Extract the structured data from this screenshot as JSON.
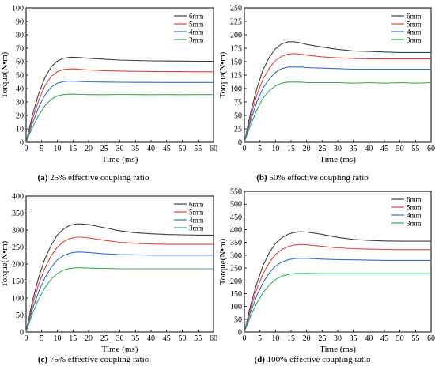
{
  "figure": {
    "panels": [
      {
        "caption_letter": "(a)",
        "caption_text": " 25% effective coupling ratio"
      },
      {
        "caption_letter": "(b)",
        "caption_text": " 50% effective coupling ratio"
      },
      {
        "caption_letter": "(c)",
        "caption_text": " 75% effective coupling ratio"
      },
      {
        "caption_letter": "(d)",
        "caption_text": " 100% effective coupling ratio"
      }
    ]
  },
  "chart_data": [
    {
      "type": "line",
      "xlabel": "Time (ms)",
      "ylabel": "Torque(N•m)",
      "xlim": [
        0,
        60
      ],
      "ylim": [
        0,
        100
      ],
      "xticks": [
        0,
        5,
        10,
        15,
        20,
        25,
        30,
        35,
        40,
        45,
        50,
        55,
        60
      ],
      "yticks": [
        0,
        10,
        20,
        30,
        40,
        50,
        60,
        70,
        80,
        90,
        100
      ],
      "legend": "top-right",
      "grid": false,
      "series": [
        {
          "name": "6mm",
          "color": "#404040",
          "x": [
            0,
            2,
            4,
            6,
            8,
            10,
            12,
            14,
            16,
            18,
            20,
            25,
            30,
            35,
            40,
            45,
            50,
            55,
            60
          ],
          "values": [
            0,
            20,
            36,
            48,
            56,
            60.5,
            62.5,
            63.3,
            63.2,
            62.9,
            62.5,
            61.8,
            61.2,
            60.9,
            60.6,
            60.5,
            60.4,
            60.3,
            60.3
          ]
        },
        {
          "name": "5mm",
          "color": "#e8403a",
          "x": [
            0,
            2,
            4,
            6,
            8,
            10,
            12,
            14,
            16,
            18,
            20,
            25,
            30,
            35,
            40,
            45,
            50,
            55,
            60
          ],
          "values": [
            0,
            17,
            31,
            42,
            49,
            52.5,
            54.2,
            54.6,
            54.5,
            54.2,
            53.8,
            53.3,
            53,
            52.8,
            52.7,
            52.6,
            52.6,
            52.5,
            52.5
          ]
        },
        {
          "name": "4mm",
          "color": "#2f6fd6",
          "x": [
            0,
            2,
            4,
            6,
            8,
            10,
            12,
            14,
            16,
            18,
            20,
            25,
            30,
            35,
            40,
            45,
            50,
            55,
            60
          ],
          "values": [
            0,
            14,
            26,
            35,
            41,
            44,
            45.2,
            45.5,
            45.4,
            45.2,
            45,
            44.8,
            44.7,
            44.6,
            44.6,
            44.5,
            44.5,
            44.5,
            44.5
          ]
        },
        {
          "name": "3mm",
          "color": "#2fb15a",
          "x": [
            0,
            2,
            4,
            6,
            8,
            10,
            12,
            14,
            16,
            18,
            20,
            25,
            30,
            35,
            40,
            45,
            50,
            55,
            60
          ],
          "values": [
            0,
            11,
            20,
            27,
            32,
            34.5,
            35.5,
            35.8,
            35.7,
            35.6,
            35.5,
            35.4,
            35.6,
            35.5,
            35.4,
            35.5,
            35.4,
            35.5,
            35.5
          ]
        }
      ]
    },
    {
      "type": "line",
      "xlabel": "Time (ms)",
      "ylabel": "Torque(N•m)",
      "xlim": [
        0,
        60
      ],
      "ylim": [
        0,
        250
      ],
      "xticks": [
        0,
        5,
        10,
        15,
        20,
        25,
        30,
        35,
        40,
        45,
        50,
        55,
        60
      ],
      "yticks": [
        0,
        25,
        50,
        75,
        100,
        125,
        150,
        175,
        200,
        225,
        250
      ],
      "legend": "top-right",
      "grid": false,
      "series": [
        {
          "name": "6mm",
          "color": "#404040",
          "x": [
            0,
            2,
            4,
            6,
            8,
            10,
            12,
            14,
            16,
            18,
            20,
            25,
            30,
            35,
            40,
            45,
            50,
            55,
            60
          ],
          "values": [
            0,
            55,
            100,
            135,
            158,
            174,
            183,
            187,
            187,
            185,
            182,
            177,
            173,
            170,
            169,
            168,
            167,
            167,
            167
          ]
        },
        {
          "name": "5mm",
          "color": "#e8403a",
          "x": [
            0,
            2,
            4,
            6,
            8,
            10,
            12,
            14,
            16,
            18,
            20,
            25,
            30,
            35,
            40,
            45,
            50,
            55,
            60
          ],
          "values": [
            0,
            47,
            88,
            118,
            138,
            152,
            160,
            164,
            165,
            164,
            162,
            159,
            157,
            156,
            155,
            155,
            155,
            155,
            155
          ]
        },
        {
          "name": "4mm",
          "color": "#2f6fd6",
          "x": [
            0,
            2,
            4,
            6,
            8,
            10,
            12,
            14,
            16,
            18,
            20,
            25,
            30,
            35,
            40,
            45,
            50,
            55,
            60
          ],
          "values": [
            0,
            40,
            75,
            101,
            118,
            130,
            137,
            140,
            140,
            140,
            139,
            138,
            137,
            136,
            136,
            136,
            136,
            136,
            136
          ]
        },
        {
          "name": "3mm",
          "color": "#2fb15a",
          "x": [
            0,
            2,
            4,
            6,
            8,
            10,
            12,
            14,
            16,
            18,
            20,
            25,
            30,
            35,
            40,
            45,
            50,
            55,
            60
          ],
          "values": [
            0,
            32,
            60,
            82,
            96,
            105,
            110,
            112,
            112,
            112,
            111,
            111,
            111,
            110,
            111,
            110,
            111,
            110,
            111
          ]
        }
      ]
    },
    {
      "type": "line",
      "xlabel": "Time (ms)",
      "ylabel": "Torque(N•m)",
      "xlim": [
        0,
        60
      ],
      "ylim": [
        0,
        400
      ],
      "xticks": [
        0,
        5,
        10,
        15,
        20,
        25,
        30,
        35,
        40,
        45,
        50,
        55,
        60
      ],
      "yticks": [
        0,
        50,
        100,
        150,
        200,
        250,
        300,
        350,
        400
      ],
      "legend": "top-right",
      "grid": false,
      "series": [
        {
          "name": "6mm",
          "color": "#404040",
          "x": [
            0,
            2,
            4,
            6,
            8,
            10,
            12,
            14,
            16,
            18,
            20,
            25,
            30,
            35,
            40,
            45,
            50,
            55,
            60
          ],
          "values": [
            0,
            90,
            160,
            215,
            255,
            285,
            303,
            314,
            318,
            318,
            316,
            307,
            298,
            292,
            289,
            287,
            286,
            285,
            285
          ]
        },
        {
          "name": "5mm",
          "color": "#e8403a",
          "x": [
            0,
            2,
            4,
            6,
            8,
            10,
            12,
            14,
            16,
            18,
            20,
            25,
            30,
            35,
            40,
            45,
            50,
            55,
            60
          ],
          "values": [
            0,
            78,
            140,
            188,
            224,
            250,
            266,
            275,
            279,
            279,
            277,
            270,
            264,
            261,
            259,
            258,
            258,
            258,
            258
          ]
        },
        {
          "name": "4mm",
          "color": "#2f6fd6",
          "x": [
            0,
            2,
            4,
            6,
            8,
            10,
            12,
            14,
            16,
            18,
            20,
            25,
            30,
            35,
            40,
            45,
            50,
            55,
            60
          ],
          "values": [
            0,
            66,
            118,
            159,
            190,
            212,
            225,
            232,
            235,
            235,
            234,
            230,
            228,
            227,
            226,
            226,
            226,
            226,
            226
          ]
        },
        {
          "name": "3mm",
          "color": "#2fb15a",
          "x": [
            0,
            2,
            4,
            6,
            8,
            10,
            12,
            14,
            16,
            18,
            20,
            25,
            30,
            35,
            40,
            45,
            50,
            55,
            60
          ],
          "values": [
            0,
            53,
            96,
            130,
            155,
            172,
            182,
            187,
            189,
            189,
            188,
            187,
            186,
            186,
            186,
            186,
            186,
            186,
            186
          ]
        }
      ]
    },
    {
      "type": "line",
      "xlabel": "Time (ms)",
      "ylabel": "Torque(N•m)",
      "xlim": [
        0,
        60
      ],
      "ylim": [
        0,
        550
      ],
      "xticks": [
        0,
        5,
        10,
        15,
        20,
        25,
        30,
        35,
        40,
        45,
        50,
        55,
        60
      ],
      "yticks": [
        0,
        50,
        100,
        150,
        200,
        250,
        300,
        350,
        400,
        450,
        500,
        550
      ],
      "legend": "top-right",
      "grid": false,
      "series": [
        {
          "name": "6mm",
          "color": "#404040",
          "x": [
            0,
            2,
            4,
            6,
            8,
            10,
            12,
            14,
            16,
            18,
            20,
            25,
            30,
            35,
            40,
            45,
            50,
            55,
            60
          ],
          "values": [
            0,
            105,
            190,
            260,
            310,
            346,
            368,
            382,
            389,
            392,
            391,
            382,
            370,
            362,
            358,
            356,
            355,
            355,
            355
          ]
        },
        {
          "name": "5mm",
          "color": "#e8403a",
          "x": [
            0,
            2,
            4,
            6,
            8,
            10,
            12,
            14,
            16,
            18,
            20,
            25,
            30,
            35,
            40,
            45,
            50,
            55,
            60
          ],
          "values": [
            0,
            92,
            168,
            228,
            272,
            303,
            322,
            334,
            340,
            342,
            341,
            335,
            329,
            326,
            324,
            323,
            322,
            322,
            322
          ]
        },
        {
          "name": "4mm",
          "color": "#2f6fd6",
          "x": [
            0,
            2,
            4,
            6,
            8,
            10,
            12,
            14,
            16,
            18,
            20,
            25,
            30,
            35,
            40,
            45,
            50,
            55,
            60
          ],
          "values": [
            0,
            78,
            142,
            193,
            231,
            257,
            273,
            282,
            287,
            288,
            288,
            285,
            283,
            282,
            281,
            280,
            280,
            280,
            280
          ]
        },
        {
          "name": "3mm",
          "color": "#2fb15a",
          "x": [
            0,
            2,
            4,
            6,
            8,
            10,
            12,
            14,
            16,
            18,
            20,
            25,
            30,
            35,
            40,
            45,
            50,
            55,
            60
          ],
          "values": [
            0,
            62,
            113,
            154,
            184,
            205,
            218,
            225,
            228,
            229,
            229,
            228,
            228,
            228,
            228,
            228,
            228,
            228,
            228
          ]
        }
      ]
    }
  ]
}
